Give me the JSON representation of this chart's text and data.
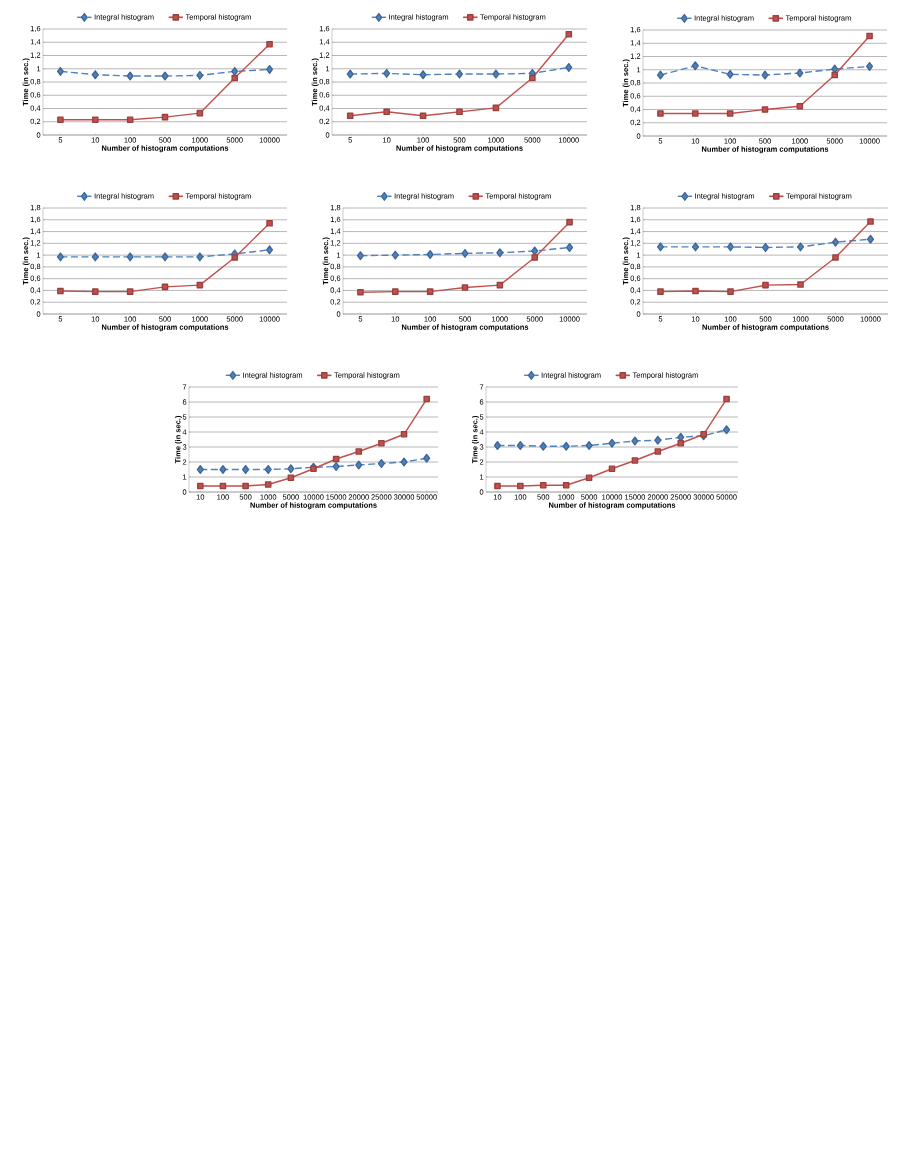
{
  "chart_data": [
    {
      "type": "line",
      "categories": [
        "5",
        "10",
        "100",
        "500",
        "1000",
        "5000",
        "10000"
      ],
      "xlabel": "Number of histogram computations",
      "ylabel": "Time (in sec.)",
      "ylim": [
        0,
        1.6
      ],
      "yticks": [
        0,
        {
          "value": 0.2,
          "label": "0,2"
        },
        {
          "value": 0.4,
          "label": "0,4"
        },
        {
          "value": 0.6,
          "label": "0,6"
        },
        {
          "value": 0.8,
          "label": "0,8"
        },
        1,
        {
          "value": 1.2,
          "label": "1,2"
        },
        {
          "value": 1.4,
          "label": "1,4"
        },
        {
          "value": 1.6,
          "label": "1,6"
        }
      ],
      "grid": "y",
      "legend": "top",
      "series": [
        {
          "name": "Integral histogram",
          "color": "#4f81bd",
          "marker": "diamond",
          "line_style": "dashed",
          "values": [
            0.96,
            0.91,
            0.89,
            0.89,
            0.9,
            0.96,
            0.99
          ]
        },
        {
          "name": "Temporal histogram",
          "color": "#c0504d",
          "marker": "square",
          "line_style": "solid",
          "values": [
            0.23,
            0.23,
            0.23,
            0.27,
            0.33,
            0.86,
            1.37
          ]
        }
      ]
    },
    {
      "type": "line",
      "categories": [
        "5",
        "10",
        "100",
        "500",
        "1000",
        "5000",
        "10000"
      ],
      "xlabel": "Number of histogram computations",
      "ylabel": "Time (in sec.)",
      "ylim": [
        0,
        1.6
      ],
      "yticks": [
        0,
        {
          "value": 0.2,
          "label": "0,2"
        },
        {
          "value": 0.4,
          "label": "0,4"
        },
        {
          "value": 0.6,
          "label": "0,6"
        },
        {
          "value": 0.8,
          "label": "0,8"
        },
        1,
        {
          "value": 1.2,
          "label": "1,2"
        },
        {
          "value": 1.4,
          "label": "1,4"
        },
        {
          "value": 1.6,
          "label": "1,6"
        }
      ],
      "grid": "y",
      "legend": "top",
      "series": [
        {
          "name": "Integral histogram",
          "color": "#4f81bd",
          "marker": "diamond",
          "line_style": "dashed",
          "values": [
            0.92,
            0.93,
            0.91,
            0.92,
            0.92,
            0.93,
            1.02
          ]
        },
        {
          "name": "Temporal histogram",
          "color": "#c0504d",
          "marker": "square",
          "line_style": "solid",
          "values": [
            0.29,
            0.35,
            0.29,
            0.35,
            0.41,
            0.86,
            1.52
          ]
        }
      ]
    },
    {
      "type": "line",
      "categories": [
        "5",
        "10",
        "100",
        "500",
        "1000",
        "5000",
        "10000"
      ],
      "xlabel": "Number of histogram computations",
      "ylabel": "Time (in sec.)",
      "ylim": [
        0,
        1.6
      ],
      "yticks": [
        0,
        {
          "value": 0.2,
          "label": "0,2"
        },
        {
          "value": 0.4,
          "label": "0,4"
        },
        {
          "value": 0.6,
          "label": "0,6"
        },
        {
          "value": 0.8,
          "label": "0,8"
        },
        1,
        {
          "value": 1.2,
          "label": "1,2"
        },
        {
          "value": 1.4,
          "label": "1,4"
        },
        {
          "value": 1.6,
          "label": "1,6"
        }
      ],
      "grid": "y",
      "legend": "top",
      "series": [
        {
          "name": "Integral histogram",
          "color": "#4f81bd",
          "marker": "diamond",
          "line_style": "dashed",
          "values": [
            0.92,
            1.06,
            0.93,
            0.92,
            0.95,
            1.01,
            1.05
          ]
        },
        {
          "name": "Temporal histogram",
          "color": "#c0504d",
          "marker": "square",
          "line_style": "solid",
          "values": [
            0.34,
            0.34,
            0.34,
            0.4,
            0.45,
            0.92,
            1.51
          ]
        }
      ]
    },
    {
      "type": "line",
      "categories": [
        "5",
        "10",
        "100",
        "500",
        "1000",
        "5000",
        "10000"
      ],
      "xlabel": "Number of histogram computations",
      "ylabel": "Time (in sec.)",
      "ylim": [
        0,
        1.8
      ],
      "yticks": [
        0,
        {
          "value": 0.2,
          "label": "0,2"
        },
        {
          "value": 0.4,
          "label": "0,4"
        },
        {
          "value": 0.6,
          "label": "0,6"
        },
        {
          "value": 0.8,
          "label": "0,8"
        },
        1,
        {
          "value": 1.2,
          "label": "1,2"
        },
        {
          "value": 1.4,
          "label": "1,4"
        },
        {
          "value": 1.6,
          "label": "1,6"
        },
        {
          "value": 1.8,
          "label": "1,8"
        }
      ],
      "grid": "y",
      "legend": "top",
      "series": [
        {
          "name": "Integral histogram",
          "color": "#4f81bd",
          "marker": "diamond",
          "line_style": "dashed",
          "values": [
            0.97,
            0.97,
            0.97,
            0.97,
            0.97,
            1.02,
            1.09
          ]
        },
        {
          "name": "Temporal histogram",
          "color": "#c0504d",
          "marker": "square",
          "line_style": "solid",
          "values": [
            0.39,
            0.38,
            0.38,
            0.46,
            0.49,
            0.96,
            1.54
          ]
        }
      ]
    },
    {
      "type": "line",
      "categories": [
        "5",
        "10",
        "100",
        "500",
        "1000",
        "5000",
        "10000"
      ],
      "xlabel": "Number of histogram computations",
      "ylabel": "Time (in sec.)",
      "ylim": [
        0,
        1.8
      ],
      "yticks": [
        0,
        {
          "value": 0.2,
          "label": "0,2"
        },
        {
          "value": 0.4,
          "label": "0,4"
        },
        {
          "value": 0.6,
          "label": "0,6"
        },
        {
          "value": 0.8,
          "label": "0,8"
        },
        1,
        {
          "value": 1.2,
          "label": "1,2"
        },
        {
          "value": 1.4,
          "label": "1,4"
        },
        {
          "value": 1.6,
          "label": "1,6"
        },
        {
          "value": 1.8,
          "label": "1,8"
        }
      ],
      "grid": "y",
      "legend": "top",
      "series": [
        {
          "name": "Integral histogram",
          "color": "#4f81bd",
          "marker": "diamond",
          "line_style": "dashed",
          "values": [
            0.99,
            1.0,
            1.01,
            1.03,
            1.04,
            1.07,
            1.13
          ]
        },
        {
          "name": "Temporal histogram",
          "color": "#c0504d",
          "marker": "square",
          "line_style": "solid",
          "values": [
            0.37,
            0.38,
            0.38,
            0.45,
            0.49,
            0.96,
            1.56
          ]
        }
      ]
    },
    {
      "type": "line",
      "categories": [
        "5",
        "10",
        "100",
        "500",
        "1000",
        "5000",
        "10000"
      ],
      "xlabel": "Number of histogram computations",
      "ylabel": "Time (in sec.)",
      "ylim": [
        0,
        1.8
      ],
      "yticks": [
        0,
        {
          "value": 0.2,
          "label": "0,2"
        },
        {
          "value": 0.4,
          "label": "0,4"
        },
        {
          "value": 0.6,
          "label": "0,6"
        },
        {
          "value": 0.8,
          "label": "0,8"
        },
        1,
        {
          "value": 1.2,
          "label": "1,2"
        },
        {
          "value": 1.4,
          "label": "1,4"
        },
        {
          "value": 1.6,
          "label": "1,6"
        },
        {
          "value": 1.8,
          "label": "1,8"
        }
      ],
      "grid": "y",
      "legend": "top",
      "series": [
        {
          "name": "Integral histogram",
          "color": "#4f81bd",
          "marker": "diamond",
          "line_style": "dashed",
          "values": [
            1.14,
            1.14,
            1.14,
            1.13,
            1.14,
            1.22,
            1.27
          ]
        },
        {
          "name": "Temporal histogram",
          "color": "#c0504d",
          "marker": "square",
          "line_style": "solid",
          "values": [
            0.38,
            0.39,
            0.38,
            0.49,
            0.5,
            0.96,
            1.57
          ]
        }
      ]
    },
    {
      "type": "line",
      "categories": [
        "10",
        "100",
        "500",
        "1000",
        "5000",
        "10000",
        "15000",
        "20000",
        "25000",
        "30000",
        "50000"
      ],
      "xlabel": "Number of histogram computations",
      "ylabel": "Time (in sec.)",
      "ylim": [
        0,
        7
      ],
      "yticks": [
        0,
        1,
        2,
        3,
        4,
        5,
        6,
        7
      ],
      "grid": "y",
      "legend": "top",
      "series": [
        {
          "name": "Integral histogram",
          "color": "#4f81bd",
          "marker": "diamond",
          "line_style": "dashed",
          "values": [
            1.5,
            1.5,
            1.5,
            1.5,
            1.55,
            1.65,
            1.7,
            1.8,
            1.9,
            2.0,
            2.25
          ]
        },
        {
          "name": "Temporal histogram",
          "color": "#c0504d",
          "marker": "square",
          "line_style": "solid",
          "values": [
            0.4,
            0.4,
            0.4,
            0.5,
            0.95,
            1.55,
            2.2,
            2.7,
            3.25,
            3.85,
            6.2
          ]
        }
      ]
    },
    {
      "type": "line",
      "categories": [
        "10",
        "100",
        "500",
        "1000",
        "5000",
        "10000",
        "15000",
        "20000",
        "25000",
        "30000",
        "50000"
      ],
      "xlabel": "Number of histogram computations",
      "ylabel": "Time (in sec.)",
      "ylim": [
        0,
        7
      ],
      "yticks": [
        0,
        1,
        2,
        3,
        4,
        5,
        6,
        7
      ],
      "grid": "y",
      "legend": "top",
      "series": [
        {
          "name": "Integral histogram",
          "color": "#4f81bd",
          "marker": "diamond",
          "line_style": "dashed",
          "values": [
            3.1,
            3.1,
            3.05,
            3.05,
            3.1,
            3.25,
            3.4,
            3.45,
            3.65,
            3.75,
            4.15
          ]
        },
        {
          "name": "Temporal histogram",
          "color": "#c0504d",
          "marker": "square",
          "line_style": "solid",
          "values": [
            0.4,
            0.4,
            0.45,
            0.45,
            0.95,
            1.55,
            2.1,
            2.7,
            3.25,
            3.85,
            6.2
          ]
        }
      ]
    }
  ]
}
